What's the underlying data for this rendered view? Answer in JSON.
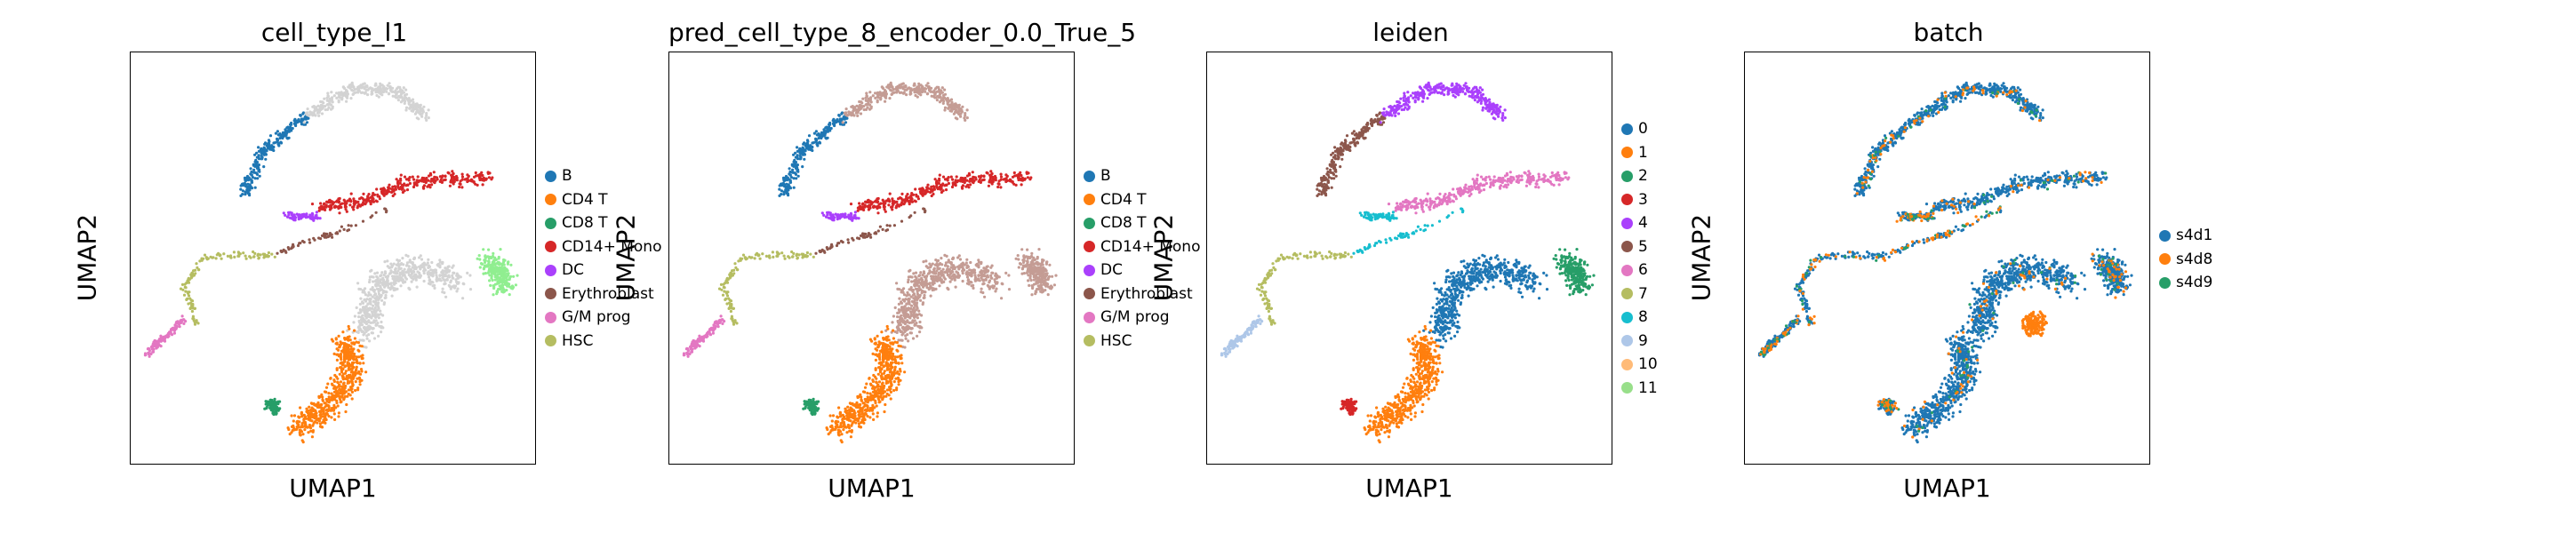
{
  "colors": {
    "B": "#1f77b4",
    "CD4 T": "#ff7f0e",
    "CD8 T": "#279e68",
    "CD14+ Mono": "#d62728",
    "DC": "#aa40fc",
    "Erythroblast": "#8c564b",
    "G/M prog": "#e377c2",
    "HSC": "#b5bd61",
    "other": "#d3d3d3",
    "leiden": [
      "#1f77b4",
      "#ff7f0e",
      "#279e68",
      "#d62728",
      "#aa40fc",
      "#8c564b",
      "#e377c2",
      "#b5bd61",
      "#17becf",
      "#aec7e8",
      "#ffbb78",
      "#98df8a"
    ],
    "batch": {
      "s4d1": "#1f77b4",
      "s4d8": "#ff7f0e",
      "s4d9": "#279e68"
    }
  },
  "chart_data": [
    {
      "type": "scatter",
      "title": "cell_type_l1",
      "xlabel": "UMAP1",
      "ylabel": "UMAP2",
      "legend": [
        "B",
        "CD4 T",
        "CD8 T",
        "CD14+ Mono",
        "DC",
        "Erythroblast",
        "G/M prog",
        "HSC"
      ],
      "legend_placement": "right",
      "grid": false
    },
    {
      "type": "scatter",
      "title": "pred_cell_type_8_encoder_0.0_True_5",
      "xlabel": "UMAP1",
      "ylabel": "UMAP2",
      "legend": [
        "B",
        "CD4 T",
        "CD8 T",
        "CD14+ Mono",
        "DC",
        "Erythroblast",
        "G/M prog",
        "HSC"
      ],
      "legend_placement": "right",
      "grid": false
    },
    {
      "type": "scatter",
      "title": "leiden",
      "xlabel": "UMAP1",
      "ylabel": "UMAP2",
      "legend": [
        "0",
        "1",
        "2",
        "3",
        "4",
        "5",
        "6",
        "7",
        "8",
        "9",
        "10",
        "11"
      ],
      "legend_placement": "right",
      "grid": false
    },
    {
      "type": "scatter",
      "title": "batch",
      "xlabel": "UMAP1",
      "ylabel": "UMAP2",
      "legend": [
        "s4d1",
        "s4d8",
        "s4d9"
      ],
      "legend_placement": "right",
      "grid": false
    }
  ]
}
